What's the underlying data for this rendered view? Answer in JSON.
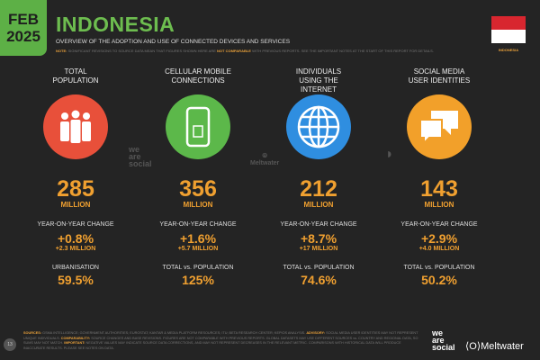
{
  "header": {
    "date_month": "FEB",
    "date_year": "2025",
    "title": "INDONESIA",
    "subtitle": "OVERVIEW OF THE ADOPTION AND USE OF CONNECTED DEVICES AND SERVICES",
    "note_label": "NOTE:",
    "note_text": "SIGNIFICANT REVISIONS TO SOURCE DATA MEAN THAT FIGURES SHOWN HERE ARE",
    "note_highlight": "NOT COMPARABLE",
    "note_tail": "WITH PREVIOUS REPORTS. SEE THE IMPORTANT NOTES AT THE START OF THIS REPORT FOR DETAILS.",
    "flag_label": "INDONESIA"
  },
  "colors": {
    "green": "#5db046",
    "orange": "#f0a030",
    "red": "#e8503a",
    "blue": "#2f8ee0",
    "flag_red": "#d8262f"
  },
  "columns": [
    {
      "heading": "TOTAL POPULATION",
      "icon": "people-icon",
      "color": "#e8503a",
      "value": "285",
      "unit": "MILLION",
      "label1": "YEAR-ON-YEAR CHANGE",
      "change": "+0.8%",
      "change_abs": "+2.3 MILLION",
      "label2": "URBANISATION",
      "value2": "59.5%"
    },
    {
      "heading": "CELLULAR MOBILE CONNECTIONS",
      "icon": "mobile-phone-icon",
      "color": "#5cb84a",
      "value": "356",
      "unit": "MILLION",
      "label1": "YEAR-ON-YEAR CHANGE",
      "change": "+1.6%",
      "change_abs": "+5.7 MILLION",
      "label2": "TOTAL vs. POPULATION",
      "value2": "125%"
    },
    {
      "heading": "INDIVIDUALS USING THE INTERNET",
      "icon": "globe-icon",
      "color": "#2f8ee0",
      "value": "212",
      "unit": "MILLION",
      "label1": "YEAR-ON-YEAR CHANGE",
      "change": "+8.7%",
      "change_abs": "+17 MILLION",
      "label2": "TOTAL vs. POPULATION",
      "value2": "74.6%"
    },
    {
      "heading": "SOCIAL MEDIA USER IDENTITIES",
      "icon": "chat-bubbles-icon",
      "color": "#f2a02a",
      "value": "143",
      "unit": "MILLION",
      "label1": "YEAR-ON-YEAR CHANGE",
      "change": "+2.9%",
      "change_abs": "+4.0 MILLION",
      "label2": "TOTAL vs. POPULATION",
      "value2": "50.2%"
    }
  ],
  "watermarks": {
    "we_are_social": "we are social",
    "meltwater": "Meltwater"
  },
  "footer": {
    "page": "13",
    "sources_label": "SOURCES:",
    "sources_text": "GSMA INTELLIGENCE; GOVERNMENT AUTHORITIES; EUROSTAT; KANTAR & MEDIA PLATFORM RESOURCES; ITU; BETA RESEARCH CENTER; KEPIOS ANALYSIS.",
    "advisory_label": "ADVISORY:",
    "advisory_text": "SOCIAL MEDIA USER IDENTITIES MAY NOT REPRESENT UNIQUE INDIVIDUALS.",
    "comparability_label": "COMPARABILITY:",
    "comparability_text": "SOURCE CHANGES AND BASE REVISIONS. FIGURES ARE NOT COMPARABLE WITH PREVIOUS REPORTS. GLOBAL DATASETS MAY USE DIFFERENT SOURCES vs. COUNTRY AND REGIONAL DATA, SO SUMS MAY NOT MATCH.",
    "important_label": "IMPORTANT:",
    "important_text": "NEGATIVE VALUES MAY INDICATE SOURCE DATA CORRECTIONS, AND MAY NOT REPRESENT DECREASES IN THE RELEVANT METRIC. COMPARISONS WITH HISTORICAL DATA WILL PRODUCE INACCURATE RESULTS. PLEASE SEE NOTES ON DATA.",
    "brand1": "we are social",
    "brand2": "Meltwater"
  }
}
